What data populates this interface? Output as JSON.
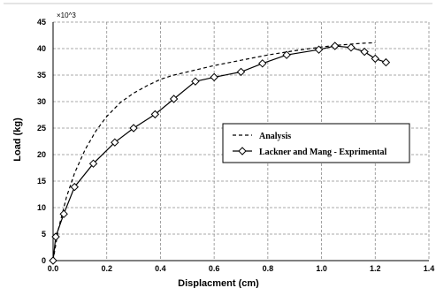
{
  "chart_data": {
    "type": "line",
    "title": "",
    "xlabel": "Displacment (cm)",
    "ylabel": "Load (kg)",
    "y_multiplier_label": "×10^3",
    "xlim": [
      0,
      1.4
    ],
    "ylim": [
      0,
      45
    ],
    "x_ticks": [
      "0.0",
      "0.2",
      "0.4",
      "0.6",
      "0.8",
      "1.0",
      "1.2",
      "1.4"
    ],
    "y_ticks": [
      "0",
      "5",
      "10",
      "15",
      "20",
      "25",
      "30",
      "35",
      "40",
      "45"
    ],
    "grid": true,
    "legend_position": "center-right",
    "series": [
      {
        "name": "Analysis",
        "style": "dashed",
        "marker": "none",
        "color": "#000000",
        "x": [
          0.0,
          0.02,
          0.05,
          0.08,
          0.12,
          0.16,
          0.2,
          0.25,
          0.3,
          0.35,
          0.4,
          0.45,
          0.5,
          0.6,
          0.7,
          0.8,
          0.9,
          1.0,
          1.05,
          1.1,
          1.15,
          1.2
        ],
        "y": [
          0,
          6,
          12,
          16.5,
          21,
          24.5,
          27.2,
          29.8,
          31.6,
          33.0,
          34.2,
          35.0,
          35.6,
          36.8,
          37.8,
          38.8,
          39.6,
          40.3,
          40.6,
          40.8,
          41.0,
          41.1
        ]
      },
      {
        "name": "Lackner and Mang  - Exprimental",
        "style": "solid",
        "marker": "diamond",
        "color": "#000000",
        "x": [
          0.0,
          0.01,
          0.04,
          0.08,
          0.15,
          0.23,
          0.3,
          0.38,
          0.45,
          0.53,
          0.6,
          0.7,
          0.78,
          0.87,
          0.99,
          1.05,
          1.11,
          1.16,
          1.2,
          1.24
        ],
        "y": [
          0,
          4.5,
          8.8,
          13.9,
          18.3,
          22.3,
          25.0,
          27.6,
          30.5,
          33.8,
          34.6,
          35.6,
          37.2,
          38.8,
          39.8,
          40.5,
          40.2,
          39.4,
          38.1,
          37.4
        ]
      }
    ]
  }
}
